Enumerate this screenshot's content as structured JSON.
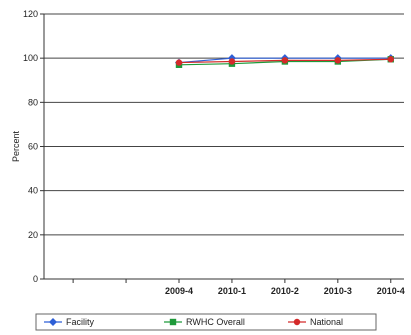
{
  "chart_data": {
    "type": "line",
    "title": "",
    "xlabel": "",
    "ylabel": "Percent",
    "ylim": [
      0,
      120
    ],
    "yticks": [
      0,
      20,
      40,
      60,
      80,
      100,
      120
    ],
    "categories": [
      "",
      "",
      "2009-4",
      "2010-1",
      "2010-2",
      "2010-3",
      "2010-4"
    ],
    "series": [
      {
        "name": "Facility",
        "color": "#2e5fd6",
        "marker": "diamond",
        "values": [
          null,
          null,
          98,
          100,
          100,
          100,
          100
        ]
      },
      {
        "name": "RWHC Overall",
        "color": "#1e9a3a",
        "marker": "square",
        "values": [
          null,
          null,
          97,
          97.5,
          98.5,
          98.5,
          99.5
        ]
      },
      {
        "name": "National",
        "color": "#d42a2a",
        "marker": "circle",
        "values": [
          null,
          null,
          98,
          98.5,
          99,
          99,
          99.5
        ]
      }
    ],
    "grid": true,
    "legend": "bottom"
  }
}
